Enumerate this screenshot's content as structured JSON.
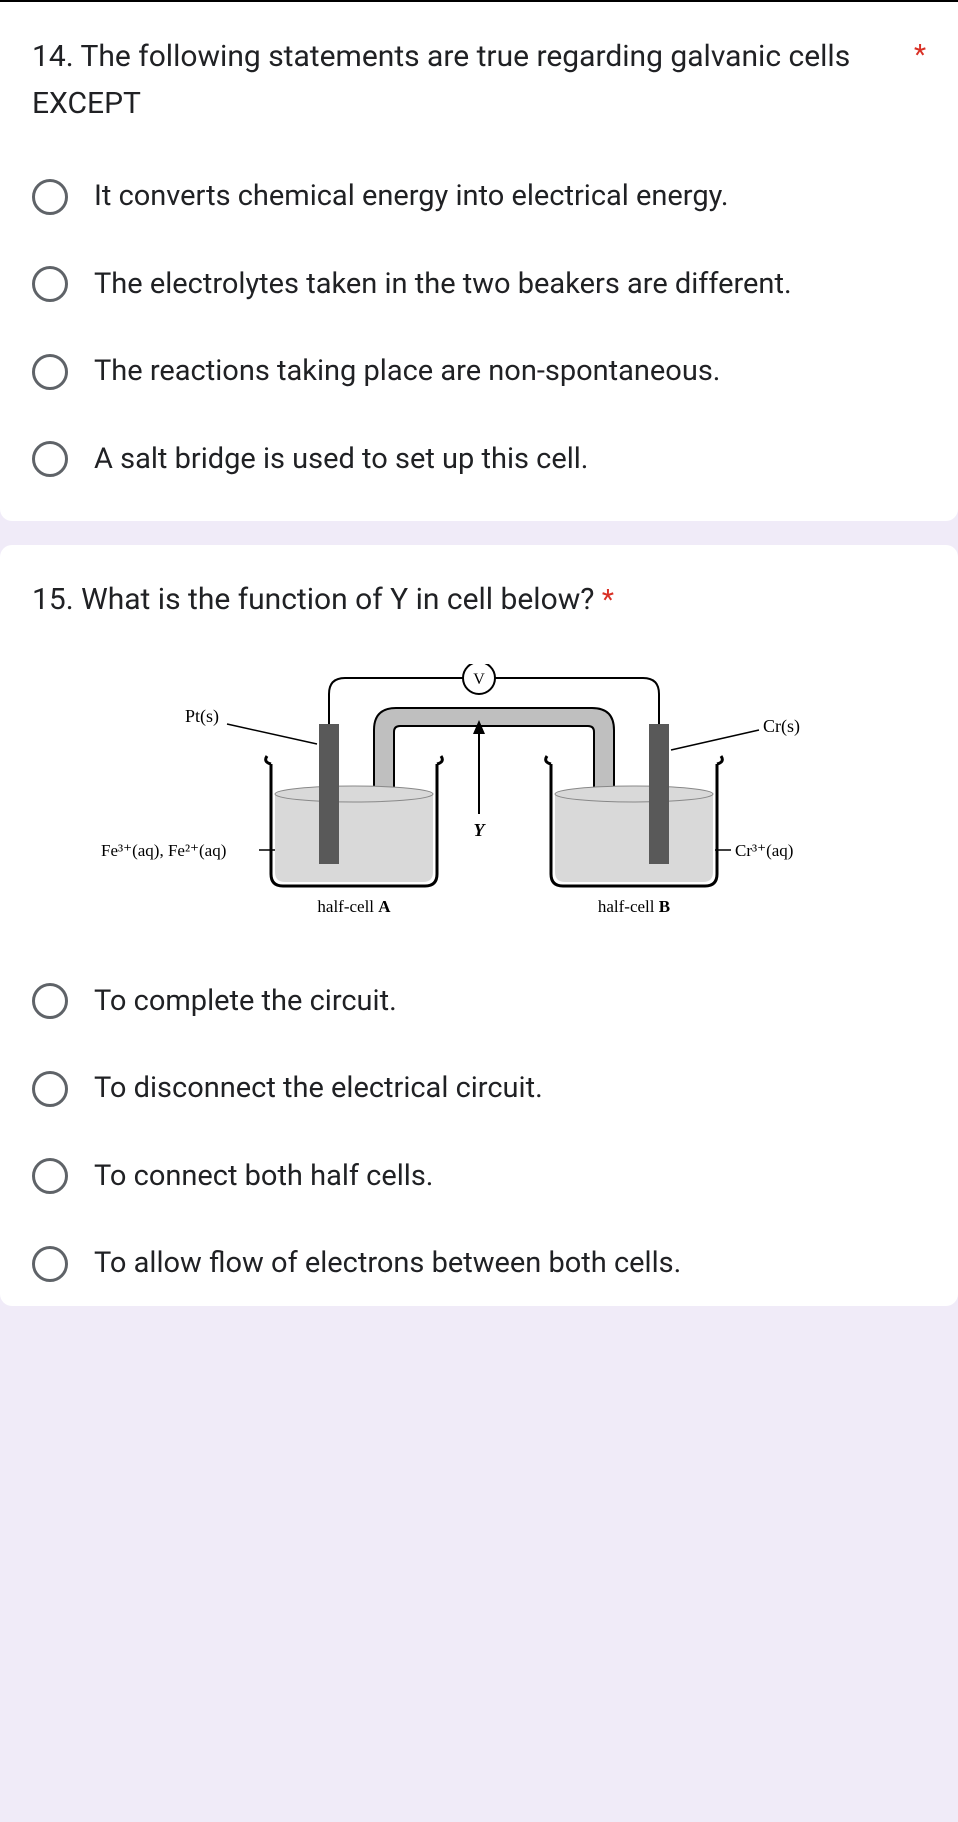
{
  "q14": {
    "text": "14. The following statements are true regarding galvanic cells EXCEPT",
    "required_marker": "*",
    "options": [
      "It converts chemical energy into electrical energy.",
      "The electrolytes taken in the two beakers are different.",
      "The reactions taking place are non-spontaneous.",
      "A salt bridge is used to set up this cell."
    ]
  },
  "q15": {
    "text": "15. What is the function of Y in cell below?",
    "required_marker": "*",
    "options": [
      "To complete the circuit.",
      "To disconnect the electrical circuit.",
      "To connect both half cells.",
      "To allow flow of electrons between both cells."
    ],
    "diagram": {
      "voltmeter_label": "V",
      "y_label": "Y",
      "left_electrode": "Pt(s)",
      "right_electrode": "Cr(s)",
      "left_solution": "Fe³⁺(aq), Fe²⁺(aq)",
      "right_solution": "Cr³⁺(aq)",
      "left_cell_label": "half-cell A",
      "right_cell_label": "half-cell B",
      "colors": {
        "stroke": "#000000",
        "beaker_fill": "#d9d9d9",
        "electrode_fill": "#595959",
        "wire": "#000000",
        "tube_fill": "#bfbfbf",
        "voltmeter_bg": "#ffffff"
      },
      "font_family": "Times New Roman, serif",
      "label_fontsize": 16,
      "cell_label_fontsize": 16
    }
  },
  "style": {
    "required_color": "#d93025",
    "radio_border": "#5f6368",
    "text_color": "#202124",
    "card_bg": "#ffffff",
    "page_bg": "#f0ebf8"
  }
}
